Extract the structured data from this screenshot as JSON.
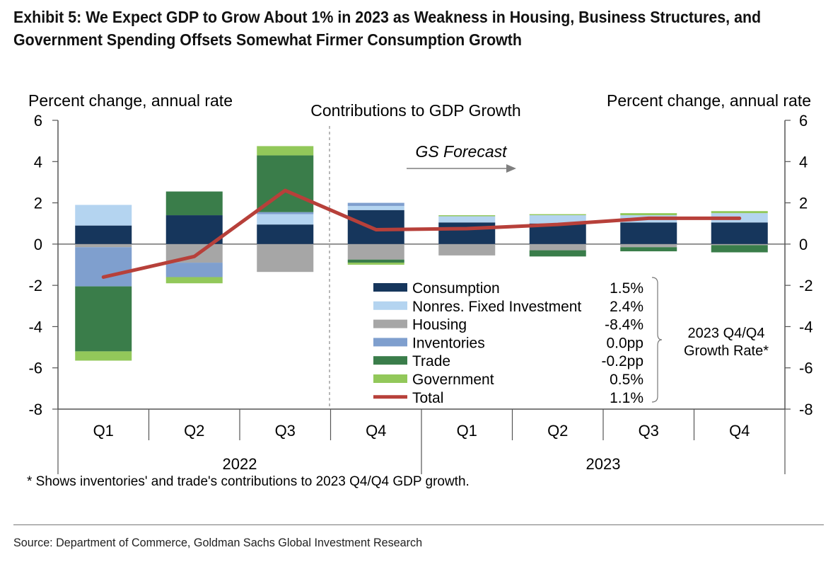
{
  "title_lines": [
    "Exhibit 5: We Expect GDP to Grow About 1% in 2023 as Weakness in Housing, Business Structures, and",
    "Government Spending Offsets Somewhat Firmer Consumption Growth"
  ],
  "footnote": "* Shows inventories' and trade's contributions to 2023 Q4/Q4 GDP growth.",
  "source": "Source: Department of Commerce, Goldman Sachs Global Investment Research",
  "colors": {
    "Consumption": "#16365c",
    "Nonres. Fixed Investment": "#b4d4f0",
    "Housing": "#a6a6a6",
    "Inventories": "#7f9fce",
    "Trade": "#3a7d4a",
    "Government": "#92c85a",
    "Total": "#b7403a"
  },
  "chart_data": {
    "type": "bar",
    "stacked": true,
    "title": "Contributions to GDP Growth",
    "ylabel_left": "Percent change, annual rate",
    "ylabel_right": "Percent change, annual rate",
    "ylim": [
      -8,
      6
    ],
    "yticks": [
      "6",
      "4",
      "2",
      "0",
      "-2",
      "-4",
      "-6",
      "-8"
    ],
    "categories": [
      "Q1",
      "Q2",
      "Q3",
      "Q4",
      "Q1",
      "Q2",
      "Q3",
      "Q4"
    ],
    "year_groups": [
      {
        "label": "2022",
        "span": 4
      },
      {
        "label": "2023",
        "span": 4
      }
    ],
    "forecast_label": "GS Forecast",
    "series": [
      {
        "name": "Consumption",
        "values": [
          0.9,
          1.4,
          0.95,
          1.65,
          1.05,
          1.0,
          1.05,
          1.05
        ]
      },
      {
        "name": "Nonres. Fixed Investment",
        "values": [
          1.0,
          0.0,
          0.5,
          0.2,
          0.3,
          0.4,
          0.35,
          0.45
        ]
      },
      {
        "name": "Housing",
        "values": [
          -0.15,
          -0.9,
          -1.35,
          -0.75,
          -0.55,
          -0.3,
          -0.15,
          -0.05
        ]
      },
      {
        "name": "Inventories",
        "values": [
          -1.9,
          -0.7,
          0.1,
          0.15,
          0.0,
          0.0,
          0.0,
          0.0
        ]
      },
      {
        "name": "Trade",
        "values": [
          -3.15,
          1.15,
          2.75,
          -0.15,
          0.0,
          -0.3,
          -0.2,
          -0.35
        ]
      },
      {
        "name": "Government",
        "values": [
          -0.45,
          -0.3,
          0.45,
          -0.1,
          0.05,
          0.05,
          0.1,
          0.1
        ]
      }
    ],
    "line": {
      "name": "Total",
      "values": [
        -1.6,
        -0.6,
        2.6,
        0.7,
        0.75,
        0.95,
        1.25,
        1.25
      ]
    },
    "legend": [
      {
        "name": "Consumption",
        "rate": "1.5%",
        "kind": "bar"
      },
      {
        "name": "Nonres. Fixed Investment",
        "rate": "2.4%",
        "kind": "bar"
      },
      {
        "name": "Housing",
        "rate": "-8.4%",
        "kind": "bar"
      },
      {
        "name": "Inventories",
        "rate": "0.0pp",
        "kind": "bar"
      },
      {
        "name": "Trade",
        "rate": "-0.2pp",
        "kind": "bar"
      },
      {
        "name": "Government",
        "rate": "0.5%",
        "kind": "bar"
      },
      {
        "name": "Total",
        "rate": "1.1%",
        "kind": "line"
      }
    ],
    "rate_note_lines": [
      "2023 Q4/Q4",
      "Growth Rate*"
    ]
  }
}
